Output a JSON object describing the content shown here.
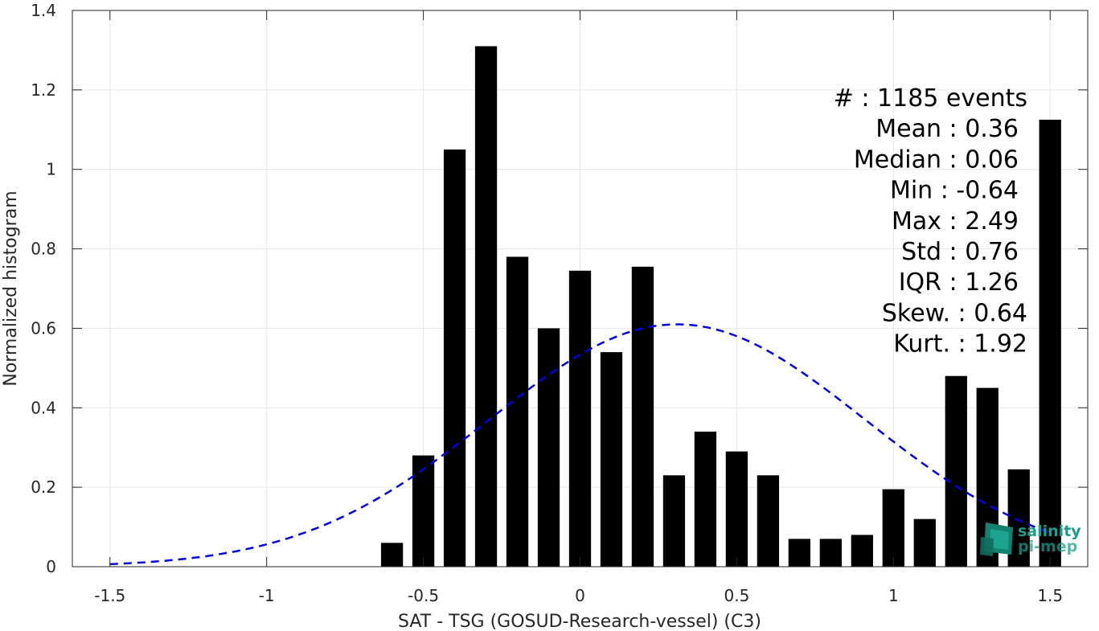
{
  "chart_data": {
    "type": "bar",
    "xlabel": "SAT - TSG (GOSUD-Research-vessel) (C3)",
    "ylabel": "Normalized histogram",
    "xlim": [
      -1.62,
      1.62
    ],
    "ylim": [
      0,
      1.4
    ],
    "xticks": [
      -1.5,
      -1,
      -0.5,
      0,
      0.5,
      1,
      1.5
    ],
    "xtick_labels": [
      "-1.5",
      "-1",
      "-0.5",
      "0",
      "0.5",
      "1",
      "1.5"
    ],
    "yticks": [
      0,
      0.2,
      0.4,
      0.6,
      0.8,
      1,
      1.2,
      1.4
    ],
    "ytick_labels": [
      "0",
      "0.2",
      "0.4",
      "0.6",
      "0.8",
      "1",
      "1.2",
      "1.4"
    ],
    "grid": true,
    "bar_color": "#000000",
    "bar_width": 0.07,
    "bars": {
      "x": [
        -0.6,
        -0.5,
        -0.4,
        -0.3,
        -0.2,
        -0.1,
        0.0,
        0.1,
        0.2,
        0.3,
        0.4,
        0.5,
        0.6,
        0.7,
        0.8,
        0.9,
        1.0,
        1.1,
        1.2,
        1.3,
        1.4,
        1.5
      ],
      "values": [
        0.06,
        0.28,
        1.05,
        1.31,
        0.78,
        0.6,
        0.745,
        0.54,
        0.755,
        0.23,
        0.34,
        0.29,
        0.23,
        0.07,
        0.07,
        0.08,
        0.195,
        0.12,
        0.48,
        0.45,
        0.245,
        1.125
      ]
    },
    "fit_curve": {
      "kind": "gaussian",
      "mean": 0.31,
      "peak": 0.61,
      "sigma": 0.6,
      "x_range": [
        -1.5,
        1.5
      ],
      "color": "#0000e6",
      "style": "dashed"
    },
    "annotation_lines": [
      "#  : 1185 events",
      "Mean : 0.36",
      "Median : 0.06",
      "Min : -0.64",
      "Max : 2.49",
      "Std : 0.76",
      "IQR : 1.26",
      "Skew. : 0.64",
      "Kurt. : 1.92"
    ]
  },
  "logo": {
    "line1": "salinity",
    "line2": "pi-mep",
    "color": "#1a9e8c"
  }
}
